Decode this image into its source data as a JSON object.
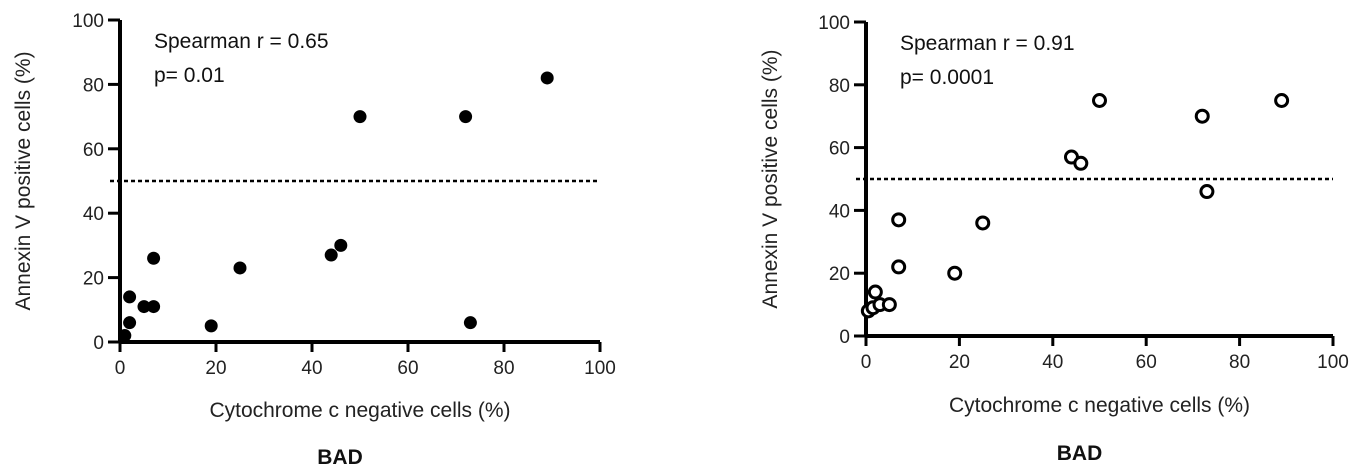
{
  "chart_data": [
    {
      "type": "scatter",
      "xlabel": "Cytochrome c negative cells (%)",
      "ylabel": "Annexin V positive cells (%)",
      "caption": "BAD",
      "annotation": [
        "Spearman r = 0.65",
        "p= 0.01"
      ],
      "xlim": [
        0,
        100
      ],
      "ylim": [
        0,
        100
      ],
      "xticks": [
        "0",
        "20",
        "40",
        "60",
        "80",
        "100"
      ],
      "yticks": [
        "0",
        "20",
        "40",
        "60",
        "80",
        "100"
      ],
      "marker": "filled",
      "reference_line_y": 50,
      "points": [
        {
          "x": 1,
          "y": 2
        },
        {
          "x": 2,
          "y": 6
        },
        {
          "x": 2,
          "y": 14
        },
        {
          "x": 5,
          "y": 11
        },
        {
          "x": 7,
          "y": 11
        },
        {
          "x": 7,
          "y": 26
        },
        {
          "x": 19,
          "y": 5
        },
        {
          "x": 25,
          "y": 23
        },
        {
          "x": 44,
          "y": 27
        },
        {
          "x": 46,
          "y": 30
        },
        {
          "x": 50,
          "y": 70
        },
        {
          "x": 72,
          "y": 70
        },
        {
          "x": 73,
          "y": 6
        },
        {
          "x": 89,
          "y": 82
        }
      ]
    },
    {
      "type": "scatter",
      "xlabel": "Cytochrome c negative cells (%)",
      "ylabel": "Annexin V positive cells (%)",
      "caption": "BAD",
      "annotation": [
        "Spearman r = 0.91",
        "p= 0.0001"
      ],
      "xlim": [
        0,
        100
      ],
      "ylim": [
        0,
        100
      ],
      "xticks": [
        "0",
        "20",
        "40",
        "60",
        "80",
        "100"
      ],
      "yticks": [
        "0",
        "20",
        "40",
        "60",
        "80",
        "100"
      ],
      "marker": "open",
      "reference_line_y": 50,
      "points": [
        {
          "x": 0.5,
          "y": 8
        },
        {
          "x": 1.5,
          "y": 9
        },
        {
          "x": 2,
          "y": 14
        },
        {
          "x": 3,
          "y": 10
        },
        {
          "x": 5,
          "y": 10
        },
        {
          "x": 7,
          "y": 22
        },
        {
          "x": 7,
          "y": 37
        },
        {
          "x": 19,
          "y": 20
        },
        {
          "x": 25,
          "y": 36
        },
        {
          "x": 44,
          "y": 57
        },
        {
          "x": 46,
          "y": 55
        },
        {
          "x": 50,
          "y": 75
        },
        {
          "x": 72,
          "y": 70
        },
        {
          "x": 73,
          "y": 46
        },
        {
          "x": 89,
          "y": 75
        }
      ]
    }
  ]
}
